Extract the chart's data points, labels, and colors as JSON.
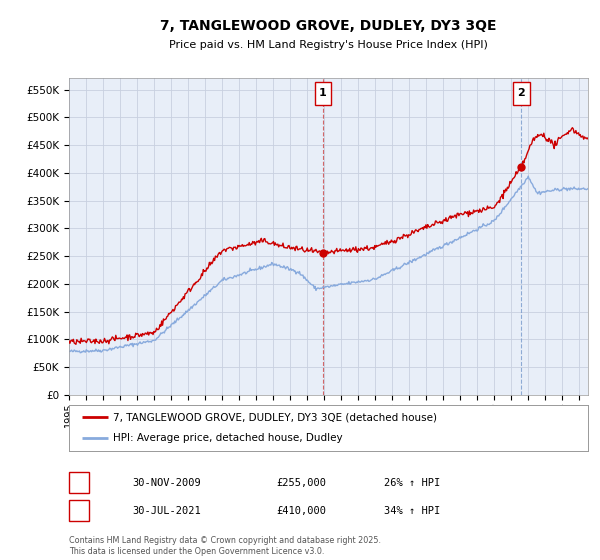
{
  "title": "7, TANGLEWOOD GROVE, DUDLEY, DY3 3QE",
  "subtitle": "Price paid vs. HM Land Registry's House Price Index (HPI)",
  "bg_color": "#e8eef8",
  "grid_color": "#c8d0e0",
  "red_color": "#cc0000",
  "blue_color": "#88aadd",
  "vline1_color": "#dd4444",
  "vline2_color": "#88aadd",
  "ylim": [
    0,
    570000
  ],
  "yticks": [
    0,
    50000,
    100000,
    150000,
    200000,
    250000,
    300000,
    350000,
    400000,
    450000,
    500000,
    550000
  ],
  "xlim_start": 1995,
  "xlim_end": 2025.5,
  "transaction1_date": 2009.92,
  "transaction1_price": 255000,
  "transaction1_label": "1",
  "transaction2_date": 2021.58,
  "transaction2_price": 410000,
  "transaction2_label": "2",
  "legend_entry1": "7, TANGLEWOOD GROVE, DUDLEY, DY3 3QE (detached house)",
  "legend_entry2": "HPI: Average price, detached house, Dudley",
  "table_row1_num": "1",
  "table_row1_date": "30-NOV-2009",
  "table_row1_price": "£255,000",
  "table_row1_hpi": "26% ↑ HPI",
  "table_row2_num": "2",
  "table_row2_date": "30-JUL-2021",
  "table_row2_price": "£410,000",
  "table_row2_hpi": "34% ↑ HPI",
  "footer": "Contains HM Land Registry data © Crown copyright and database right 2025.\nThis data is licensed under the Open Government Licence v3.0."
}
